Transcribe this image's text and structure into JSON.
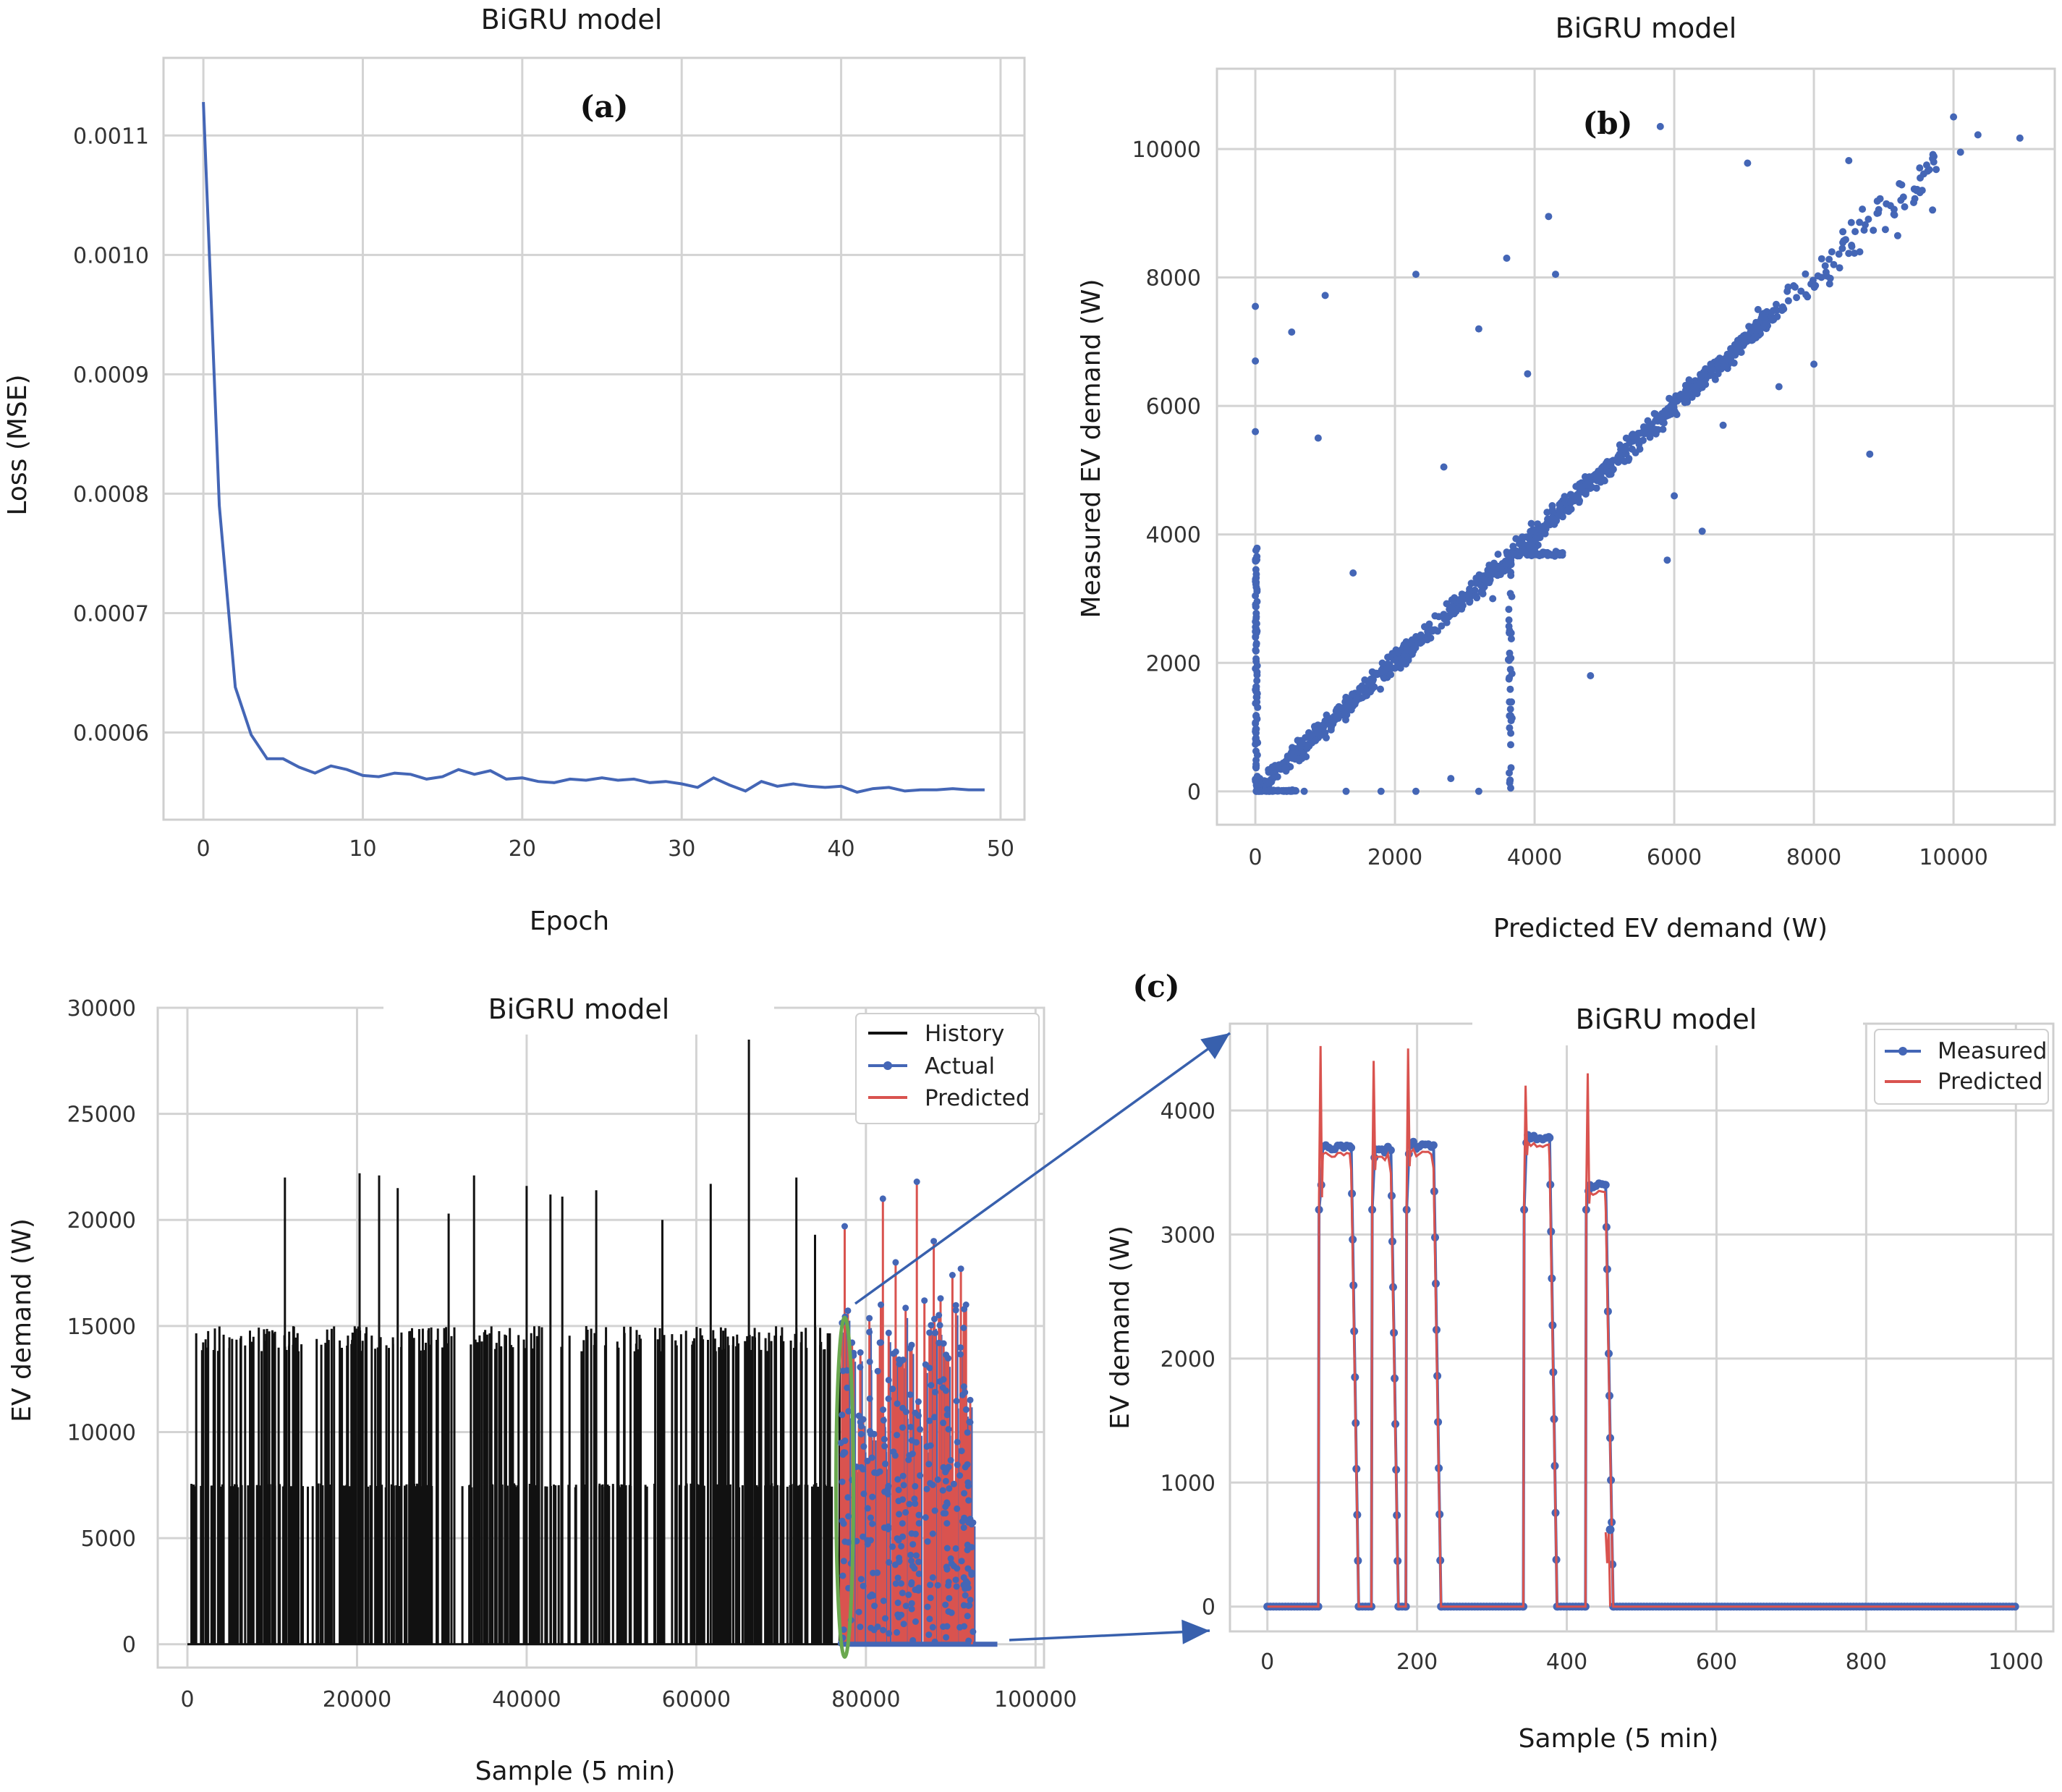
{
  "colors": {
    "blue": "#4466b6",
    "red": "#d9534f",
    "black": "#111111",
    "green": "#6aa84f",
    "arrow": "#3860ad",
    "grid": "#d3d3d3"
  },
  "chart_data": [
    {
      "id": "a",
      "type": "line",
      "panel_label": "(a)",
      "title": "BiGRU model",
      "xlabel": "Epoch",
      "ylabel": "Loss (MSE)",
      "xlim": [
        -2.5,
        51.5
      ],
      "ylim": [
        0.000527,
        0.001165
      ],
      "xticks": [
        0,
        10,
        20,
        30,
        40,
        50
      ],
      "xtick_labels": [
        "0",
        "10",
        "20",
        "30",
        "40",
        "50"
      ],
      "yticks": [
        0.0006,
        0.0007,
        0.0008,
        0.0009,
        0.001,
        0.0011
      ],
      "ytick_labels": [
        "0.0006",
        "0.0007",
        "0.0008",
        "0.0009",
        "0.0010",
        "0.0011"
      ],
      "grid": true,
      "series": [
        {
          "color": "blue",
          "x": [
            0,
            1,
            2,
            3,
            4,
            5,
            6,
            7,
            8,
            9,
            10,
            11,
            12,
            13,
            14,
            15,
            16,
            17,
            18,
            19,
            20,
            21,
            22,
            23,
            24,
            25,
            26,
            27,
            28,
            29,
            30,
            31,
            32,
            33,
            34,
            35,
            36,
            37,
            38,
            39,
            40,
            41,
            42,
            43,
            44,
            45,
            46,
            47,
            48,
            49
          ],
          "y": [
            0.001128,
            0.00079,
            0.000638,
            0.000598,
            0.000578,
            0.000578,
            0.000571,
            0.000566,
            0.000572,
            0.000569,
            0.000564,
            0.000563,
            0.000566,
            0.000565,
            0.000561,
            0.000563,
            0.000569,
            0.000565,
            0.000568,
            0.000561,
            0.000562,
            0.000559,
            0.000558,
            0.000561,
            0.00056,
            0.000562,
            0.00056,
            0.000561,
            0.000558,
            0.000559,
            0.000557,
            0.000554,
            0.000562,
            0.000556,
            0.000551,
            0.000559,
            0.000555,
            0.000557,
            0.000555,
            0.000554,
            0.000555,
            0.00055,
            0.000553,
            0.000554,
            0.000551,
            0.000552,
            0.000552,
            0.000553,
            0.000552,
            0.000552
          ]
        }
      ]
    },
    {
      "id": "b",
      "type": "scatter",
      "panel_label": "(b)",
      "title": "BiGRU model",
      "xlabel": "Predicted EV demand (W)",
      "ylabel": "Measured EV demand (W)",
      "xlim": [
        -550,
        11450
      ],
      "ylim": [
        -520,
        11250
      ],
      "xticks": [
        0,
        2000,
        4000,
        6000,
        8000,
        10000
      ],
      "xtick_labels": [
        "0",
        "2000",
        "4000",
        "6000",
        "8000",
        "10000"
      ],
      "yticks": [
        0,
        2000,
        4000,
        6000,
        8000,
        10000
      ],
      "ytick_labels": [
        "0",
        "2000",
        "4000",
        "6000",
        "8000",
        "10000"
      ],
      "grid": true,
      "series": [
        {
          "color": "blue",
          "diagonal_band": {
            "x_from": 0,
            "x_to": 7500,
            "slope": 1.0,
            "spread": 250
          },
          "vertical_cluster_x": 0,
          "vertical_cluster_ymax": 3800,
          "vertical_band_x": 3650,
          "plateau_y": 3700,
          "outliers": [
            [
              0,
              7550
            ],
            [
              0,
              6700
            ],
            [
              0,
              5600
            ],
            [
              520,
              7150
            ],
            [
              1000,
              7720
            ],
            [
              900,
              5500
            ],
            [
              2300,
              8050
            ],
            [
              3200,
              7200
            ],
            [
              3600,
              8300
            ],
            [
              3900,
              6500
            ],
            [
              4200,
              8950
            ],
            [
              4300,
              8050
            ],
            [
              5800,
              10350
            ],
            [
              7050,
              9780
            ],
            [
              8500,
              9820
            ],
            [
              10000,
              10500
            ],
            [
              10350,
              10220
            ],
            [
              10950,
              10170
            ],
            [
              10100,
              9950
            ],
            [
              9700,
              9850
            ],
            [
              9300,
              9100
            ],
            [
              9700,
              9050
            ],
            [
              4800,
              1800
            ],
            [
              5900,
              3600
            ],
            [
              6400,
              4050
            ],
            [
              8000,
              6650
            ],
            [
              9200,
              8650
            ],
            [
              8800,
              5250
            ],
            [
              3400,
              3000
            ],
            [
              2700,
              5050
            ],
            [
              1400,
              3400
            ],
            [
              2800,
              200
            ],
            [
              1300,
              0
            ],
            [
              1800,
              0
            ],
            [
              2300,
              0
            ],
            [
              3200,
              0
            ],
            [
              700,
              0
            ],
            [
              7200,
              7500
            ],
            [
              7500,
              6300
            ],
            [
              6700,
              5700
            ],
            [
              6000,
              4600
            ]
          ]
        }
      ]
    },
    {
      "id": "c_left",
      "type": "line",
      "panel_label": "(c)",
      "title": "BiGRU model",
      "xlabel": "Sample (5 min)",
      "ylabel": "EV demand (W)",
      "xlim": [
        -3500,
        101000
      ],
      "ylim": [
        -1100,
        30000
      ],
      "xticks": [
        0,
        20000,
        40000,
        60000,
        80000,
        100000
      ],
      "xtick_labels": [
        "0",
        "20000",
        "40000",
        "60000",
        "80000",
        "100000"
      ],
      "yticks": [
        0,
        5000,
        10000,
        15000,
        20000,
        25000,
        30000
      ],
      "ytick_labels": [
        "0",
        "5000",
        "10000",
        "15000",
        "20000",
        "25000",
        "30000"
      ],
      "grid": true,
      "legend": {
        "position": "top-right",
        "entries": [
          {
            "label": "History",
            "color": "black",
            "marker": false
          },
          {
            "label": "Actual",
            "color": "blue",
            "marker": true
          },
          {
            "label": "Predicted",
            "color": "red",
            "marker": false
          }
        ]
      },
      "history_range": [
        0,
        77000
      ],
      "history_levels": [
        7500,
        15000
      ],
      "history_spikes": [
        [
          11500,
          22000
        ],
        [
          20300,
          22200
        ],
        [
          22600,
          22100
        ],
        [
          24800,
          21500
        ],
        [
          30800,
          20300
        ],
        [
          33800,
          22100
        ],
        [
          40000,
          21600
        ],
        [
          42800,
          21200
        ],
        [
          44200,
          21100
        ],
        [
          48200,
          21400
        ],
        [
          56000,
          20000
        ],
        [
          61700,
          21700
        ],
        [
          66200,
          28500
        ],
        [
          71800,
          22000
        ],
        [
          74000,
          19300
        ]
      ],
      "actual_range": [
        77000,
        96000
      ],
      "actual_spikes": [
        [
          77500,
          19700
        ],
        [
          82000,
          21000
        ],
        [
          83500,
          18000
        ],
        [
          86000,
          21800
        ],
        [
          86900,
          16200
        ],
        [
          88000,
          19000
        ],
        [
          88800,
          16300
        ],
        [
          90200,
          17400
        ],
        [
          91200,
          17700
        ],
        [
          91800,
          16000
        ]
      ],
      "highlight_ellipse": {
        "x": 77500,
        "y": 7400,
        "rx": 1300,
        "ry": 8000
      }
    },
    {
      "id": "c_right",
      "type": "line",
      "title": "BiGRU model",
      "xlabel": "Sample (5 min)",
      "ylabel": "EV demand (W)",
      "xlim": [
        -50,
        1050
      ],
      "ylim": [
        -200,
        4700
      ],
      "xticks": [
        0,
        200,
        400,
        600,
        800,
        1000
      ],
      "xtick_labels": [
        "0",
        "200",
        "400",
        "600",
        "800",
        "1000"
      ],
      "yticks": [
        0,
        1000,
        2000,
        3000,
        4000
      ],
      "ytick_labels": [
        "0",
        "1000",
        "2000",
        "3000",
        "4000"
      ],
      "grid": true,
      "legend": {
        "position": "top-right",
        "entries": [
          {
            "label": "Measured",
            "color": "blue",
            "marker": true
          },
          {
            "label": "Predicted",
            "color": "red",
            "marker": false
          }
        ]
      },
      "segments": [
        {
          "start": 68,
          "end": 122,
          "level": 3700,
          "low": 3400,
          "peak_pred": 4520
        },
        {
          "start": 139,
          "end": 175,
          "level": 3680,
          "low": 3620,
          "peak_pred": 4400
        },
        {
          "start": 185,
          "end": 232,
          "level": 3720,
          "low": 3650,
          "peak_pred": 4500
        },
        {
          "start": 342,
          "end": 387,
          "level": 3780,
          "low": 3740,
          "peak_pred": 4200
        },
        {
          "start": 425,
          "end": 462,
          "level": 3400,
          "low": 3350,
          "peak_pred": 4300
        }
      ],
      "n": 1000
    }
  ]
}
